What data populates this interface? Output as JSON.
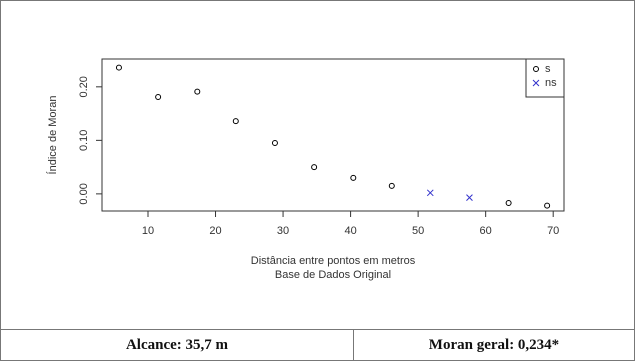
{
  "chart_data": {
    "type": "scatter",
    "xlabel": "Distância entre pontos em metros",
    "subtitle": "Base de Dados Original",
    "ylabel": "Índice de Moran",
    "xlim": [
      3.19,
      71.6
    ],
    "ylim": [
      -0.032,
      0.252
    ],
    "xticks": [
      10,
      20,
      30,
      40,
      50,
      60,
      70
    ],
    "yticks": [
      {
        "value": 0,
        "label": "0.00"
      },
      {
        "value": 0.1,
        "label": "0.10"
      },
      {
        "value": 0.2,
        "label": "0.20"
      }
    ],
    "legend": "top-right",
    "series": [
      {
        "name": "s",
        "color": "#000000",
        "marker": "circle",
        "x": [
          5.7,
          11.5,
          17.3,
          23.0,
          28.8,
          34.6,
          40.4,
          46.1,
          63.4,
          69.1
        ],
        "values": [
          0.236,
          0.181,
          0.191,
          0.136,
          0.095,
          0.05,
          0.03,
          0.015,
          -0.017,
          -0.022
        ]
      },
      {
        "name": "ns",
        "color": "#3333cc",
        "marker": "x",
        "x": [
          51.8,
          57.6
        ],
        "values": [
          0.002,
          -0.007
        ]
      }
    ]
  },
  "table": {
    "cells": [
      "Alcance: 35,7 m",
      "Moran geral: 0,234*"
    ]
  }
}
